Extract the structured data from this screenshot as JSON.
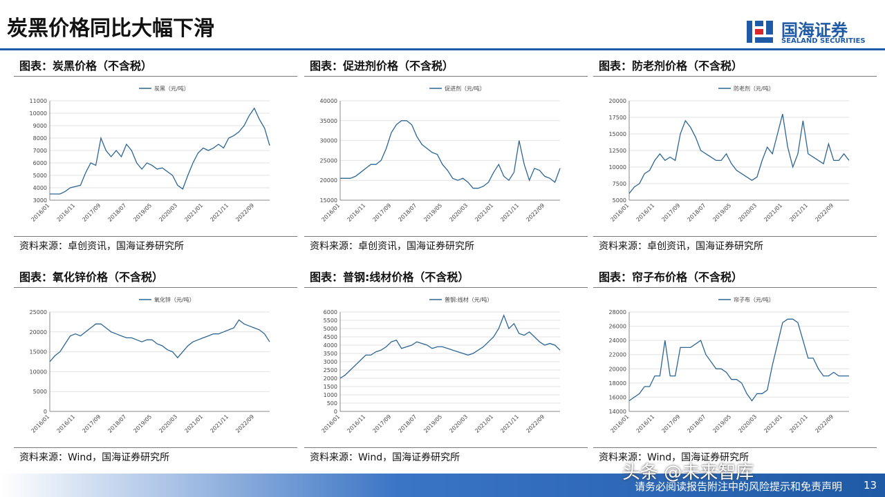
{
  "header": {
    "title": "炭黑价格同比大幅下滑",
    "logo_cn": "国海证券",
    "logo_en": "SEALAND SECURITIES"
  },
  "footer": {
    "disclaimer": "请务必阅读报告附注中的风险提示和免责声明",
    "page": "13",
    "watermark": "头条 @未来智库"
  },
  "chart_data": [
    {
      "type": "line",
      "title": "图表：炭黑价格（不含税）",
      "source": "资料来源：卓创资讯，国海证券研究所",
      "categories": [
        "2016/01",
        null,
        null,
        null,
        null,
        "2016/11",
        null,
        null,
        null,
        null,
        "2017/09",
        null,
        null,
        null,
        null,
        "2018/07",
        null,
        null,
        null,
        null,
        "2019/05",
        null,
        null,
        null,
        null,
        "2020/03",
        null,
        null,
        null,
        null,
        "2021/01",
        null,
        null,
        null,
        null,
        "2021/11",
        null,
        null,
        null,
        null,
        "2022/09",
        null,
        null,
        null
      ],
      "series": [
        {
          "name": "炭黑（元/吨）",
          "color": "#2b6592",
          "values": [
            3500,
            3500,
            3500,
            3700,
            4000,
            4100,
            4200,
            5200,
            6000,
            5800,
            8000,
            7000,
            6500,
            7000,
            6500,
            7500,
            7000,
            6000,
            5500,
            6000,
            5800,
            5500,
            5600,
            5300,
            5000,
            4200,
            3900,
            5000,
            6000,
            6800,
            7200,
            7000,
            7200,
            7500,
            7200,
            8000,
            8200,
            8500,
            9000,
            9800,
            10400,
            9500,
            8800,
            7400
          ]
        }
      ],
      "ylim": [
        3000,
        11000
      ],
      "yticks": [
        3000,
        4000,
        5000,
        6000,
        7000,
        8000,
        9000,
        10000,
        11000
      ],
      "grid": true
    },
    {
      "type": "line",
      "title": "图表：促进剂价格（不含税）",
      "source": "资料来源：卓创资讯，国海证券研究所",
      "categories": [
        "2016/01",
        null,
        null,
        null,
        null,
        "2016/11",
        null,
        null,
        null,
        null,
        "2017/09",
        null,
        null,
        null,
        null,
        "2018/07",
        null,
        null,
        null,
        null,
        "2019/05",
        null,
        null,
        null,
        null,
        "2020/03",
        null,
        null,
        null,
        null,
        "2021/01",
        null,
        null,
        null,
        null,
        "2021/11",
        null,
        null,
        null,
        null,
        "2022/09",
        null,
        null,
        null
      ],
      "series": [
        {
          "name": "促进剂（元/吨）",
          "color": "#2b6592",
          "values": [
            20500,
            20500,
            20500,
            21000,
            22000,
            23000,
            24000,
            24000,
            25000,
            28000,
            32000,
            34000,
            35000,
            35000,
            34000,
            31000,
            29000,
            28000,
            27000,
            26500,
            24000,
            22500,
            20500,
            20000,
            20500,
            19500,
            18000,
            18000,
            18500,
            19500,
            22000,
            24000,
            21000,
            20000,
            22000,
            30000,
            24000,
            20000,
            23000,
            22500,
            21000,
            20500,
            19500,
            23000
          ]
        }
      ],
      "ylim": [
        15000,
        40000
      ],
      "yticks": [
        15000,
        20000,
        25000,
        30000,
        35000,
        40000
      ],
      "grid": true
    },
    {
      "type": "line",
      "title": "图表：防老剂价格（不含税）",
      "source": "资料来源：卓创资讯，国海证券研究所",
      "categories": [
        "2016/01",
        null,
        null,
        null,
        null,
        "2016/11",
        null,
        null,
        null,
        null,
        "2017/09",
        null,
        null,
        null,
        null,
        "2018/07",
        null,
        null,
        null,
        null,
        "2019/05",
        null,
        null,
        null,
        null,
        "2020/03",
        null,
        null,
        null,
        null,
        "2021/01",
        null,
        null,
        null,
        null,
        "2021/11",
        null,
        null,
        null,
        null,
        "2022/09",
        null,
        null,
        null
      ],
      "series": [
        {
          "name": "防老剂（元/吨）",
          "color": "#2b6592",
          "values": [
            6000,
            7000,
            7500,
            9000,
            9500,
            11000,
            12000,
            11000,
            11500,
            11000,
            15000,
            17000,
            16000,
            14500,
            12500,
            12000,
            11500,
            11000,
            11000,
            12000,
            10500,
            9500,
            9000,
            8500,
            8000,
            8500,
            11000,
            13000,
            12000,
            15000,
            18000,
            13000,
            10000,
            12000,
            17000,
            12000,
            11500,
            11000,
            10500,
            13500,
            11000,
            11000,
            12000,
            11000
          ]
        }
      ],
      "ylim": [
        5000,
        20000
      ],
      "yticks": [
        5000,
        7500,
        10000,
        12500,
        15000,
        17500,
        20000
      ],
      "grid": true
    },
    {
      "type": "line",
      "title": "图表：氧化锌价格（不含税）",
      "source": "资料来源：Wind，国海证券研究所",
      "categories": [
        "2016/01",
        null,
        null,
        null,
        null,
        "2016/11",
        null,
        null,
        null,
        null,
        "2017/09",
        null,
        null,
        null,
        null,
        "2018/07",
        null,
        null,
        null,
        null,
        "2019/05",
        null,
        null,
        null,
        null,
        "2020/03",
        null,
        null,
        null,
        null,
        "2021/01",
        null,
        null,
        null,
        null,
        "2021/11",
        null,
        null,
        null,
        null,
        "2022/09",
        null,
        null,
        null
      ],
      "series": [
        {
          "name": "氧化锌（元/吨）",
          "color": "#2b6592",
          "values": [
            12500,
            14000,
            15000,
            17000,
            19000,
            19500,
            19000,
            20000,
            21000,
            22000,
            22000,
            21000,
            20000,
            19500,
            19000,
            18500,
            18500,
            18000,
            17500,
            18000,
            18000,
            17000,
            16500,
            15500,
            15000,
            13500,
            15000,
            16500,
            17500,
            18000,
            18500,
            19000,
            19500,
            19500,
            20000,
            20500,
            21000,
            23000,
            22000,
            21500,
            21000,
            20500,
            19500,
            17500
          ]
        }
      ],
      "ylim": [
        0,
        25000
      ],
      "yticks": [
        0,
        5000,
        10000,
        15000,
        20000,
        25000
      ],
      "grid": true
    },
    {
      "type": "line",
      "title": "图表：普钢:线材价格（不含税）",
      "source": "资料来源：Wind，国海证券研究所",
      "categories": [
        "2016/01",
        null,
        null,
        null,
        null,
        "2016/11",
        null,
        null,
        null,
        null,
        "2017/09",
        null,
        null,
        null,
        null,
        "2018/07",
        null,
        null,
        null,
        null,
        "2019/05",
        null,
        null,
        null,
        null,
        "2020/03",
        null,
        null,
        null,
        null,
        "2021/01",
        null,
        null,
        null,
        null,
        "2021/11",
        null,
        null,
        null,
        null,
        "2022/09",
        null,
        null,
        null
      ],
      "series": [
        {
          "name": "普钢:线材（元/吨）",
          "color": "#2b6592",
          "values": [
            2000,
            2200,
            2500,
            2800,
            3100,
            3400,
            3400,
            3600,
            3700,
            3900,
            4200,
            4300,
            3800,
            3900,
            4000,
            4200,
            4100,
            4000,
            3800,
            3900,
            3900,
            3800,
            3700,
            3600,
            3500,
            3400,
            3500,
            3700,
            3900,
            4200,
            4500,
            5000,
            5800,
            5000,
            5300,
            4700,
            4600,
            4800,
            4500,
            4200,
            4000,
            4100,
            4000,
            3700
          ]
        }
      ],
      "ylim": [
        0,
        6000
      ],
      "yticks": [
        0,
        500,
        1000,
        1500,
        2000,
        2500,
        3000,
        3500,
        4000,
        4500,
        5000,
        5500,
        6000
      ],
      "grid": true
    },
    {
      "type": "line",
      "title": "图表：帘子布价格（不含税）",
      "source": "资料来源：Wind，国海证券研究所",
      "categories": [
        "2016/01",
        null,
        null,
        null,
        null,
        "2016/11",
        null,
        null,
        null,
        null,
        "2017/09",
        null,
        null,
        null,
        null,
        "2018/07",
        null,
        null,
        null,
        null,
        "2019/05",
        null,
        null,
        null,
        null,
        "2020/03",
        null,
        null,
        null,
        null,
        "2021/01",
        null,
        null,
        null,
        null,
        "2021/11",
        null,
        null,
        null,
        null,
        "2022/09",
        null,
        null,
        null
      ],
      "series": [
        {
          "name": "帘子布（元/吨）",
          "color": "#2b6592",
          "values": [
            15500,
            16000,
            16500,
            17500,
            17500,
            19000,
            19000,
            24000,
            19000,
            19000,
            23000,
            23000,
            23000,
            23500,
            24000,
            22000,
            21000,
            20000,
            20000,
            19500,
            18500,
            18500,
            18000,
            16500,
            15500,
            16500,
            16500,
            17000,
            20500,
            23500,
            26500,
            27000,
            27000,
            26500,
            24000,
            21500,
            21500,
            20000,
            19000,
            19000,
            19500,
            19000,
            19000,
            19000
          ]
        }
      ],
      "ylim": [
        14000,
        28000
      ],
      "yticks": [
        14000,
        16000,
        18000,
        20000,
        22000,
        24000,
        26000,
        28000
      ],
      "grid": true
    }
  ]
}
